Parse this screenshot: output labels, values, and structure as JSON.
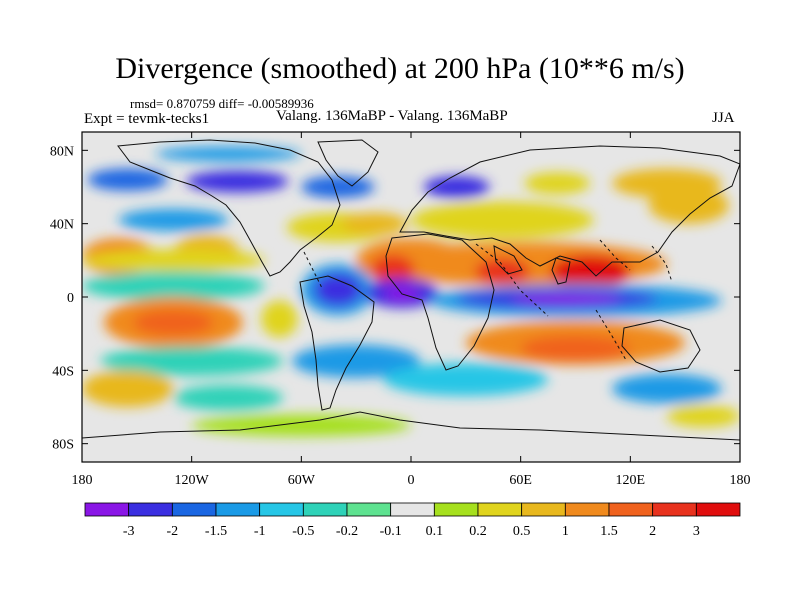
{
  "chart_data": {
    "type": "heatmap",
    "title": "Divergence (smoothed) at 200 hPa (10**6 m/s)",
    "stats_text": "rmsd= 0.870759 diff= -0.00589936",
    "experiment_label": "Expt = tevmk-tecks1",
    "subtitle": "Valang. 136MaBP - Valang. 136MaBP",
    "season": "JJA",
    "x_axis": {
      "range": [
        -180,
        180
      ],
      "ticks": [
        {
          "value": -180,
          "label": "180"
        },
        {
          "value": -120,
          "label": "120W"
        },
        {
          "value": -60,
          "label": "60W"
        },
        {
          "value": 0,
          "label": "0"
        },
        {
          "value": 60,
          "label": "60E"
        },
        {
          "value": 120,
          "label": "120E"
        },
        {
          "value": 180,
          "label": "180"
        }
      ]
    },
    "y_axis": {
      "range": [
        -90,
        90
      ],
      "ticks": [
        {
          "value": 80,
          "label": "80N"
        },
        {
          "value": 40,
          "label": "40N"
        },
        {
          "value": 0,
          "label": "0"
        },
        {
          "value": -40,
          "label": "40S"
        },
        {
          "value": -80,
          "label": "80S"
        }
      ]
    },
    "colorbar": {
      "colors": [
        "#8a16e6",
        "#3a2ee0",
        "#1a66e2",
        "#1a9ae6",
        "#26c6e6",
        "#2ed2b8",
        "#5ee290",
        "#e6e6e6",
        "#a6e01e",
        "#e0d41e",
        "#e8b81e",
        "#f08a1e",
        "#f0621e",
        "#e8321e",
        "#e00d0d"
      ],
      "labels": [
        "-3",
        "-2",
        "-1.5",
        "-1",
        "-0.5",
        "-0.2",
        "-0.1",
        "0.1",
        "0.2",
        "0.5",
        "1",
        "1.5",
        "2",
        "3"
      ]
    },
    "field": [
      {
        "lon": -100,
        "lat": 78,
        "rlon": 40,
        "rlat": 4,
        "level": 3
      },
      {
        "lon": -155,
        "lat": 64,
        "rlon": 22,
        "rlat": 6,
        "level": 2
      },
      {
        "lon": -95,
        "lat": 63,
        "rlon": 28,
        "rlat": 6,
        "level": 1
      },
      {
        "lon": -40,
        "lat": 60,
        "rlon": 20,
        "rlat": 6,
        "level": 2
      },
      {
        "lon": 25,
        "lat": 60,
        "rlon": 18,
        "rlat": 6,
        "level": 1
      },
      {
        "lon": 80,
        "lat": 62,
        "rlon": 18,
        "rlat": 6,
        "level": 9
      },
      {
        "lon": 140,
        "lat": 62,
        "rlon": 30,
        "rlat": 8,
        "level": 10
      },
      {
        "lon": 152,
        "lat": 50,
        "rlon": 22,
        "rlat": 10,
        "level": 10
      },
      {
        "lon": -40,
        "lat": 38,
        "rlon": 28,
        "rlat": 8,
        "level": 9
      },
      {
        "lon": -20,
        "lat": 40,
        "rlon": 18,
        "rlat": 6,
        "level": 10
      },
      {
        "lon": 50,
        "lat": 42,
        "rlon": 50,
        "rlat": 10,
        "level": 9
      },
      {
        "lon": -130,
        "lat": 42,
        "rlon": 30,
        "rlat": 6,
        "level": 3
      },
      {
        "lon": -160,
        "lat": 22,
        "rlon": 20,
        "rlat": 10,
        "level": 11
      },
      {
        "lon": -112,
        "lat": 24,
        "rlon": 18,
        "rlat": 10,
        "level": 10
      },
      {
        "lon": -130,
        "lat": 20,
        "rlon": 50,
        "rlat": 6,
        "level": 9
      },
      {
        "lon": 0,
        "lat": 20,
        "rlon": 30,
        "rlat": 12,
        "level": 11
      },
      {
        "lon": 60,
        "lat": 18,
        "rlon": 80,
        "rlat": 12,
        "level": 11
      },
      {
        "lon": -10,
        "lat": 15,
        "rlon": 12,
        "rlat": 8,
        "level": 13
      },
      {
        "lon": 50,
        "lat": 14,
        "rlon": 15,
        "rlat": 7,
        "level": 13
      },
      {
        "lon": 98,
        "lat": 14,
        "rlon": 22,
        "rlat": 9,
        "level": 14
      },
      {
        "lon": -130,
        "lat": 6,
        "rlon": 50,
        "rlat": 8,
        "level": 5
      },
      {
        "lon": -40,
        "lat": 4,
        "rlon": 20,
        "rlat": 14,
        "level": 3
      },
      {
        "lon": -40,
        "lat": 4,
        "rlon": 13,
        "rlat": 9,
        "level": 1
      },
      {
        "lon": -5,
        "lat": 2,
        "rlon": 20,
        "rlat": 8,
        "level": 1
      },
      {
        "lon": -5,
        "lat": 2,
        "rlon": 10,
        "rlat": 4,
        "level": 0
      },
      {
        "lon": 90,
        "lat": -2,
        "rlon": 80,
        "rlat": 9,
        "level": 3
      },
      {
        "lon": 80,
        "lat": -1,
        "rlon": 55,
        "rlat": 5,
        "level": 1
      },
      {
        "lon": 85,
        "lat": -1,
        "rlon": 30,
        "rlat": 3,
        "level": 0
      },
      {
        "lon": -130,
        "lat": -14,
        "rlon": 38,
        "rlat": 14,
        "level": 11
      },
      {
        "lon": -130,
        "lat": -14,
        "rlon": 22,
        "rlat": 7,
        "level": 12
      },
      {
        "lon": -72,
        "lat": -12,
        "rlon": 10,
        "rlat": 10,
        "level": 9
      },
      {
        "lon": 90,
        "lat": -25,
        "rlon": 60,
        "rlat": 12,
        "level": 11
      },
      {
        "lon": 90,
        "lat": -28,
        "rlon": 30,
        "rlat": 7,
        "level": 12
      },
      {
        "lon": -120,
        "lat": -35,
        "rlon": 50,
        "rlat": 8,
        "level": 5
      },
      {
        "lon": -30,
        "lat": -35,
        "rlon": 35,
        "rlat": 9,
        "level": 3
      },
      {
        "lon": -155,
        "lat": -50,
        "rlon": 25,
        "rlat": 10,
        "level": 10
      },
      {
        "lon": -100,
        "lat": -55,
        "rlon": 30,
        "rlat": 7,
        "level": 5
      },
      {
        "lon": 30,
        "lat": -45,
        "rlon": 45,
        "rlat": 9,
        "level": 4
      },
      {
        "lon": 140,
        "lat": -50,
        "rlon": 30,
        "rlat": 8,
        "level": 3
      },
      {
        "lon": -60,
        "lat": -70,
        "rlon": 60,
        "rlat": 6,
        "level": 8
      },
      {
        "lon": 160,
        "lat": -65,
        "rlon": 20,
        "rlat": 6,
        "level": 9
      }
    ]
  }
}
